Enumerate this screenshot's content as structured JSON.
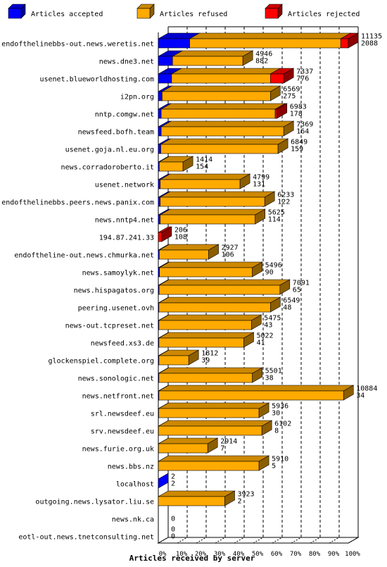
{
  "chart_data": {
    "type": "bar",
    "orientation": "horizontal",
    "stacked": true,
    "three_d": true,
    "xlabel": "Articles received by server",
    "xlim": [
      0,
      100
    ],
    "x_ticks": [
      "0%",
      "10%",
      "20%",
      "30%",
      "40%",
      "50%",
      "60%",
      "70%",
      "80%",
      "90%",
      "100%"
    ],
    "legend_position": "top",
    "grid": "dashed vertical",
    "colors": {
      "accepted": "#0000ff",
      "refused": "#ffaa00",
      "rejected": "#ff0000"
    },
    "series": [
      {
        "key": "accepted",
        "name": "Articles accepted"
      },
      {
        "key": "refused",
        "name": "Articles refused"
      },
      {
        "key": "rejected",
        "name": "Articles rejected"
      }
    ],
    "rows": [
      {
        "server": "endofthelinebbs-out.news.weretis.net",
        "total": "11135",
        "second": "2088",
        "accepted": 16.5,
        "refused": 79.5,
        "rejected": 4
      },
      {
        "server": "news.dne3.net",
        "total": "4946",
        "second": "882",
        "accepted": 7.5,
        "refused": 37,
        "rejected": 0
      },
      {
        "server": "usenet.blueworldhosting.com",
        "total": "7337",
        "second": "776",
        "accepted": 7,
        "refused": 52,
        "rejected": 7
      },
      {
        "server": "i2pn.org",
        "total": "6569",
        "second": "275",
        "accepted": 2,
        "refused": 57,
        "rejected": 0
      },
      {
        "server": "nntp.comgw.net",
        "total": "6983",
        "second": "178",
        "accepted": 1.5,
        "refused": 60,
        "rejected": 1
      },
      {
        "server": "newsfeed.bofh.team",
        "total": "7369",
        "second": "164",
        "accepted": 1.5,
        "refused": 64.5,
        "rejected": 0
      },
      {
        "server": "usenet.goja.nl.eu.org",
        "total": "6849",
        "second": "159",
        "accepted": 1.3,
        "refused": 61.7,
        "rejected": 0
      },
      {
        "server": "news.corradoroberto.it",
        "total": "1414",
        "second": "154",
        "accepted": 0.5,
        "refused": 12.5,
        "rejected": 0
      },
      {
        "server": "usenet.network",
        "total": "4799",
        "second": "131",
        "accepted": 1,
        "refused": 42,
        "rejected": 0
      },
      {
        "server": "endofthelinebbs.peers.news.panix.com",
        "total": "6233",
        "second": "122",
        "accepted": 1,
        "refused": 55,
        "rejected": 0
      },
      {
        "server": "news.nntp4.net",
        "total": "5625",
        "second": "114",
        "accepted": 1,
        "refused": 50,
        "rejected": 0
      },
      {
        "server": "194.87.241.33",
        "total": "206",
        "second": "108",
        "accepted": 0,
        "refused": 0,
        "rejected": 1.8
      },
      {
        "server": "endoftheline-out.news.chmurka.net",
        "total": "2927",
        "second": "106",
        "accepted": 0.5,
        "refused": 26,
        "rejected": 0
      },
      {
        "server": "news.samoylyk.net",
        "total": "5496",
        "second": "90",
        "accepted": 0.6,
        "refused": 48.9,
        "rejected": 0
      },
      {
        "server": "news.hispagatos.org",
        "total": "7091",
        "second": "65",
        "accepted": 0.4,
        "refused": 63.6,
        "rejected": 0
      },
      {
        "server": "peering.usenet.ovh",
        "total": "6549",
        "second": "48",
        "accepted": 0.3,
        "refused": 58.7,
        "rejected": 0
      },
      {
        "server": "news-out.tcpreset.net",
        "total": "5475",
        "second": "43",
        "accepted": 0.3,
        "refused": 48.7,
        "rejected": 0
      },
      {
        "server": "newsfeed.xs3.de",
        "total": "5022",
        "second": "41",
        "accepted": 0.3,
        "refused": 44.7,
        "rejected": 0
      },
      {
        "server": "glockenspiel.complete.org",
        "total": "1812",
        "second": "39",
        "accepted": 0.3,
        "refused": 15.7,
        "rejected": 0
      },
      {
        "server": "news.sonologic.net",
        "total": "5501",
        "second": "38",
        "accepted": 0.3,
        "refused": 49.2,
        "rejected": 0
      },
      {
        "server": "news.netfront.net",
        "total": "10884",
        "second": "34",
        "accepted": 0.3,
        "refused": 97.2,
        "rejected": 0
      },
      {
        "server": "srl.newsdeef.eu",
        "total": "5936",
        "second": "30",
        "accepted": 0.2,
        "refused": 52.8,
        "rejected": 0
      },
      {
        "server": "srv.newsdeef.eu",
        "total": "6102",
        "second": "8",
        "accepted": 0.1,
        "refused": 54.4,
        "rejected": 0
      },
      {
        "server": "news.furie.org.uk",
        "total": "2914",
        "second": "7",
        "accepted": 0.1,
        "refused": 25.9,
        "rejected": 0
      },
      {
        "server": "news.bbs.nz",
        "total": "5910",
        "second": "5",
        "accepted": 0.05,
        "refused": 52.95,
        "rejected": 0
      },
      {
        "server": "localhost",
        "total": "2",
        "second": "2",
        "accepted": 0,
        "refused": 0,
        "rejected": 0
      },
      {
        "server": "outgoing.news.lysator.liu.se",
        "total": "3923",
        "second": "2",
        "accepted": 0,
        "refused": 35,
        "rejected": 0
      },
      {
        "server": "news.nk.ca",
        "total": "",
        "second": "0",
        "accepted": 0,
        "refused": 0,
        "rejected": 0
      },
      {
        "server": "eotl-out.news.tnetconsulting.net",
        "total": "0",
        "second": "0",
        "accepted": 0,
        "refused": 0,
        "rejected": 0
      }
    ]
  }
}
